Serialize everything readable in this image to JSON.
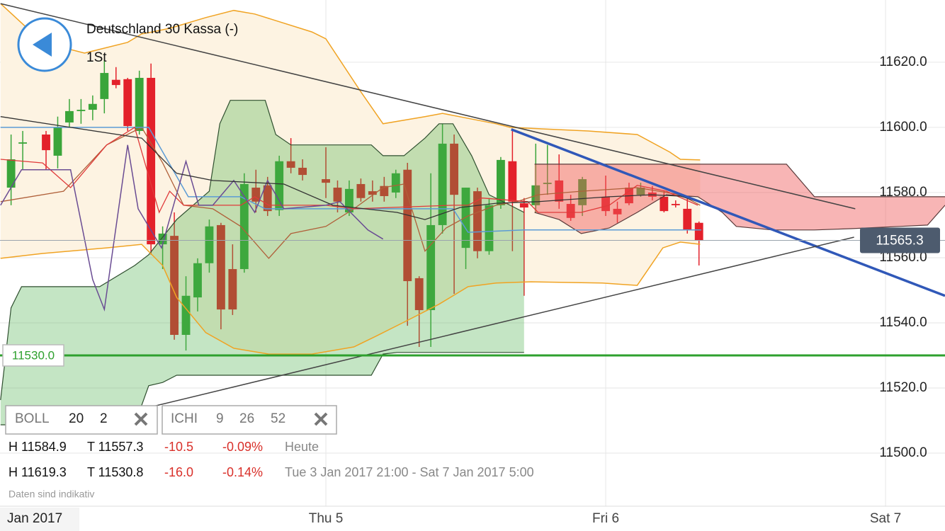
{
  "header": {
    "title": "Deutschland 30 Kassa (-)",
    "interval": "1St"
  },
  "indicators": [
    {
      "name": "BOLL",
      "params": [
        20,
        2
      ]
    },
    {
      "name": "ICHI",
      "params": [
        9,
        26,
        52
      ]
    }
  ],
  "stats": {
    "rows": [
      [
        "H 11584.9",
        "T 11557.3",
        "-10.5",
        "-0.09%",
        "Heute"
      ],
      [
        "H 11619.3",
        "T 11530.8",
        "-16.0",
        "-0.14%",
        "Tue 3 Jan 2017 21:00 - Sat 7 Jan 2017 5:00"
      ]
    ]
  },
  "disclaimer": "Daten sind indikativ",
  "chart_data": {
    "type": "candlestick",
    "x_period_label": "Jan 2017",
    "x": [
      -27,
      -26,
      -24,
      -23,
      -22,
      -21,
      -20,
      -19,
      -18,
      -17,
      -16,
      -15,
      -14,
      -13,
      -12,
      -11,
      -10,
      -9,
      -8,
      -7,
      -6,
      -5,
      -4,
      -3,
      -2,
      0,
      1,
      2,
      3,
      4,
      5,
      6,
      7,
      8,
      9,
      10,
      11,
      12,
      13,
      14,
      15,
      16,
      17,
      18,
      19,
      20,
      21,
      22,
      24,
      25,
      26,
      27,
      28,
      29,
      30,
      31,
      32
    ],
    "open": [
      11581.5,
      11595.0,
      11597.8,
      11591.3,
      11601.5,
      11605.0,
      11605.4,
      11608.7,
      11614.6,
      11614.8,
      11598.9,
      11615.2,
      11564.1,
      11566.7,
      11536.3,
      11547.8,
      11558.3,
      11570.0,
      11556.5,
      11556.5,
      11581.5,
      11582.2,
      11574.6,
      11589.6,
      11587.6,
      11584.1,
      11581.5,
      11573.9,
      11582.6,
      11580.4,
      11582.0,
      11580.0,
      11587.0,
      11553.7,
      11543.9,
      11570.0,
      11595.0,
      11563.0,
      11580.4,
      11562.0,
      11576.1,
      11589.6,
      11576.7,
      11576.1,
      11582.6,
      11583.7,
      11576.5,
      11576.1,
      11578.7,
      11575.0,
      11581.5,
      11579.3,
      11580.0,
      11578.7,
      11576.5,
      11575.0,
      11570.7
    ],
    "high": [
      11597.8,
      11598.9,
      11598.9,
      11603.3,
      11608.7,
      11608.7,
      11609.8,
      11620.7,
      11618.5,
      11615.2,
      11617.4,
      11619.6,
      11569.6,
      11573.9,
      11554.3,
      11559.8,
      11571.7,
      11570.7,
      11564.1,
      11585.9,
      11587.0,
      11584.8,
      11591.3,
      11596.7,
      11590.2,
      11593.9,
      11583.7,
      11583.7,
      11584.3,
      11583.7,
      11584.8,
      11587.0,
      11589.1,
      11554.3,
      11585.9,
      11601.1,
      11597.8,
      11581.5,
      11581.5,
      11578.3,
      11590.9,
      11599.4,
      11578.3,
      11595.0,
      11594.6,
      11591.7,
      11579.3,
      11584.8,
      11585.2,
      11577.2,
      11583.0,
      11583.0,
      11582.0,
      11580.4,
      11577.6,
      11578.3,
      11571.1
    ],
    "low": [
      11576.1,
      11587.0,
      11587.0,
      11587.4,
      11600.0,
      11601.1,
      11602.2,
      11604.3,
      11612.0,
      11598.9,
      11597.8,
      11560.9,
      11556.5,
      11534.8,
      11531.5,
      11543.5,
      11555.4,
      11538.0,
      11542.4,
      11555.4,
      11573.9,
      11572.8,
      11572.8,
      11585.9,
      11583.7,
      11578.3,
      11573.9,
      11572.8,
      11577.2,
      11577.2,
      11577.2,
      11578.3,
      11539.1,
      11532.6,
      11532.6,
      11567.4,
      11548.9,
      11556.5,
      11559.8,
      11560.9,
      11575.0,
      11562.0,
      11548.3,
      11573.9,
      11579.3,
      11575.0,
      11571.3,
      11572.8,
      11572.8,
      11570.7,
      11576.1,
      11578.7,
      11577.6,
      11573.9,
      11575.4,
      11567.4,
      11557.6
    ],
    "close": [
      11590.2,
      11595.4,
      11593.0,
      11600.0,
      11605.0,
      11605.4,
      11607.2,
      11616.7,
      11613.0,
      11600.4,
      11615.2,
      11564.1,
      11567.4,
      11536.3,
      11548.3,
      11558.3,
      11569.6,
      11544.1,
      11544.1,
      11582.6,
      11577.2,
      11574.3,
      11589.6,
      11587.6,
      11585.4,
      11583.0,
      11577.2,
      11581.1,
      11578.3,
      11579.3,
      11578.9,
      11585.9,
      11552.8,
      11543.9,
      11570.0,
      11595.0,
      11579.3,
      11581.5,
      11562.0,
      11576.1,
      11590.0,
      11577.2,
      11575.4,
      11582.2,
      11583.0,
      11577.2,
      11572.2,
      11584.1,
      11574.3,
      11573.3,
      11576.7,
      11581.5,
      11578.7,
      11574.3,
      11576.1,
      11568.5,
      11565.3
    ],
    "up_color": "#3aa53a",
    "down_color": "#e3212b",
    "xlim": [
      -27.95,
      53.1
    ],
    "xticks": [
      {
        "value": 0,
        "label": "Thu 5"
      },
      {
        "value": 24,
        "label": "Fri 6"
      },
      {
        "value": 48,
        "label": "Sat 7"
      }
    ],
    "ylim": [
      11483.7,
      11639.1
    ],
    "yticks": [
      {
        "value": 11500,
        "label": "11500.0"
      },
      {
        "value": 11520,
        "label": "11520.0"
      },
      {
        "value": 11540,
        "label": "11540.0"
      },
      {
        "value": 11560,
        "label": "11560.0"
      },
      {
        "value": 11580,
        "label": "11580.0"
      },
      {
        "value": 11600,
        "label": "11600.0"
      },
      {
        "value": 11620,
        "label": "11620.0"
      }
    ],
    "grid": true,
    "band": {
      "color": "#fdf3e2",
      "upper": {
        "x": [
          -27.9,
          -24.3,
          -20.7,
          -17.0,
          -15.8,
          -14.9,
          -13.4,
          -10.3,
          -7.9,
          -6.1,
          -1.2,
          0,
          3.0,
          4.9,
          8.5,
          10.0,
          14.6,
          15.8,
          22.5,
          26.7,
          29.5,
          30.4,
          32.1
        ],
        "values": [
          11638.0,
          11626.1,
          11622.8,
          11626.1,
          11628.7,
          11629.3,
          11630.4,
          11633.7,
          11635.9,
          11634.8,
          11629.3,
          11627.2,
          11610.9,
          11601.1,
          11603.3,
          11604.3,
          11601.1,
          11600.0,
          11598.9,
          11597.8,
          11592.4,
          11590.2,
          11590.0
        ]
      },
      "lower": {
        "x": [
          -27.9,
          -24.3,
          -18.8,
          -15.8,
          -14.0,
          -12.8,
          -10.3,
          -7.9,
          -4.9,
          -1.2,
          2.4,
          4.3,
          6.7,
          9.7,
          12.2,
          14.6,
          17.6,
          23.7,
          26.7,
          28.9,
          30.4,
          32.1
        ],
        "values": [
          11559.8,
          11561.3,
          11563.0,
          11564.1,
          11557.6,
          11547.8,
          11537.0,
          11532.2,
          11530.4,
          11530.4,
          11532.6,
          11535.9,
          11540.2,
          11545.7,
          11551.1,
          11552.2,
          11552.6,
          11552.2,
          11551.5,
          11563.0,
          11564.8,
          11564.1
        ]
      }
    },
    "clouds": [
      {
        "color": "rgba(70,175,70,0.32)",
        "edge": "#2f4f2f",
        "x": [
          -27.9,
          -27.0,
          -26.1,
          -19.4,
          -16.4,
          -15.2,
          -12.8,
          -10.0,
          -9.1,
          -8.2,
          -5.2,
          -4.3,
          -3.0,
          3.9,
          4.9,
          6.7,
          8.5,
          9.7,
          10.9,
          12.5,
          14.0,
          15.8,
          17.0
        ],
        "upper": [
          11516.3,
          11544.6,
          11551.1,
          11551.1,
          11557.6,
          11560.9,
          11571.7,
          11580.4,
          11601.1,
          11608.3,
          11608.3,
          11597.8,
          11594.6,
          11594.6,
          11591.3,
          11591.3,
          11596.7,
          11601.1,
          11601.1,
          11591.3,
          11579.3,
          11576.1,
          11573.9
        ],
        "x_lower": [
          -27.9,
          -16.4,
          -15.2,
          -14.0,
          -12.8,
          -1.2,
          3.9,
          4.9,
          6.1,
          17.0
        ],
        "lower": [
          11508.7,
          11508.7,
          11520.7,
          11521.7,
          11523.9,
          11523.9,
          11523.9,
          11530.4,
          11530.9,
          11530.9
        ]
      },
      {
        "color": "rgba(240,90,90,0.45)",
        "edge": "#5a3a3a",
        "x": [
          17.9,
          39.5,
          41.9,
          53.1
        ],
        "upper": [
          11588.7,
          11588.7,
          11578.7,
          11578.7
        ],
        "x_lower": [
          17.9,
          20.0,
          21.9,
          24.3,
          26.7,
          29.2,
          31.9,
          34.0,
          35.2,
          38.3,
          41.9,
          45.0,
          49.2,
          51.6,
          53.1
        ],
        "lower": [
          11573.9,
          11571.7,
          11567.4,
          11569.1,
          11573.9,
          11579.3,
          11578.7,
          11573.9,
          11569.6,
          11568.5,
          11568.5,
          11568.9,
          11569.6,
          11570.0,
          11576.1
        ]
      }
    ],
    "lines": [
      {
        "color": "#f0a323",
        "width": 1.5,
        "x": [
          -27.9,
          -24.3,
          -20.7,
          -17.0,
          -15.8,
          -14.9,
          -13.4,
          -10.3,
          -7.9,
          -6.1,
          -1.2,
          0,
          3.0,
          4.9,
          8.5,
          10.0,
          14.6,
          15.8,
          22.5,
          26.7,
          29.5,
          30.4,
          32.1
        ],
        "values": [
          11638.0,
          11626.1,
          11622.8,
          11626.1,
          11628.7,
          11629.3,
          11630.4,
          11633.7,
          11635.9,
          11634.8,
          11629.3,
          11627.2,
          11610.9,
          11601.1,
          11603.3,
          11604.3,
          11601.1,
          11600.0,
          11598.9,
          11597.8,
          11592.4,
          11590.2,
          11590.0
        ]
      },
      {
        "color": "#f0a323",
        "width": 1.5,
        "x": [
          -27.9,
          -24.3,
          -18.8,
          -15.8,
          -14.0,
          -12.8,
          -10.3,
          -7.9,
          -4.9,
          -1.2,
          2.4,
          4.3,
          6.7,
          9.7,
          12.2,
          14.6,
          17.6,
          23.7,
          26.7,
          28.9,
          30.4,
          32.1
        ],
        "values": [
          11559.8,
          11561.3,
          11563.0,
          11564.1,
          11557.6,
          11547.8,
          11537.0,
          11532.2,
          11530.4,
          11530.4,
          11532.6,
          11535.9,
          11540.2,
          11545.7,
          11551.1,
          11552.2,
          11552.6,
          11552.2,
          11551.5,
          11563.0,
          11564.8,
          11564.1
        ]
      },
      {
        "color": "#b0603a",
        "width": 1.3,
        "x": [
          -27.9,
          -22.5,
          -18.8,
          -15.8,
          -14.0,
          -12.2,
          -9.7,
          -7.3,
          -4.9,
          -3.0,
          0,
          2.4,
          4.9,
          6.7,
          8.5,
          10.3,
          12.2,
          14.6,
          16.4,
          18.2,
          21.9,
          26.7,
          30.4,
          32.1
        ],
        "values": [
          11577.2,
          11580.4,
          11594.6,
          11600.0,
          11589.1,
          11576.1,
          11575.0,
          11569.6,
          11559.8,
          11567.4,
          11569.6,
          11575.0,
          11581.5,
          11582.6,
          11562.0,
          11569.1,
          11572.8,
          11576.1,
          11577.2,
          11579.3,
          11580.4,
          11581.5,
          11579.3,
          11576.1
        ]
      },
      {
        "color": "#5b9bd5",
        "width": 1.5,
        "x": [
          -27.9,
          -15.2,
          -11.8,
          -7.3,
          -5.2,
          10.9,
          12.2,
          17.0,
          32.2
        ],
        "values": [
          11600.0,
          11600.0,
          11578.7,
          11578.7,
          11575.0,
          11575.0,
          11567.8,
          11568.5,
          11568.5
        ]
      },
      {
        "color": "#e03a3a",
        "width": 1.3,
        "x": [
          -27.9,
          -24.3,
          -21.9,
          -18.8,
          -16.4,
          -14.3,
          -13.4,
          -12.2,
          -7.3,
          -6.1,
          -4.9,
          0,
          2.4,
          10.9,
          12.2,
          13.4,
          17.3,
          18.2,
          21.9,
          24.3,
          26.7,
          29.2,
          31.9
        ],
        "values": [
          11590.2,
          11589.1,
          11581.5,
          11594.6,
          11600.0,
          11573.9,
          11580.4,
          11576.1,
          11576.1,
          11578.7,
          11576.1,
          11576.1,
          11575.0,
          11576.1,
          11576.1,
          11578.3,
          11577.2,
          11573.9,
          11573.9,
          11576.1,
          11582.2,
          11580.4,
          11576.1
        ]
      },
      {
        "color": "#6a4c93",
        "width": 1.5,
        "x": [
          -27.9,
          -26.1,
          -21.9,
          -20.0,
          -19.0,
          -17.0,
          -16.1,
          -14.1,
          -12.0,
          -10.9,
          -9.7,
          -7.9,
          -6.1,
          -5.0,
          -3.6,
          0,
          1.2,
          3.6,
          4.9
        ],
        "values": [
          11576.1,
          11587.0,
          11587.0,
          11553.3,
          11544.1,
          11594.6,
          11575.0,
          11563.0,
          11589.6,
          11576.1,
          11576.1,
          11583.7,
          11573.9,
          11583.7,
          11575.0,
          11576.1,
          11577.2,
          11568.5,
          11565.7
        ]
      },
      {
        "color": "#333333",
        "width": 1.3,
        "x": [
          -27.9,
          -21.9,
          -15.8,
          -12.8,
          -9.7,
          -3.6,
          0.6,
          6.1,
          8.5,
          11.5,
          14.6,
          18.2,
          24.3,
          27.9,
          30.4,
          31.9
        ],
        "values": [
          11603.3,
          11600.0,
          11596.7,
          11585.9,
          11583.7,
          11582.6,
          11576.1,
          11573.9,
          11571.7,
          11575.4,
          11576.7,
          11577.2,
          11578.7,
          11579.3,
          11578.9,
          11577.2
        ]
      }
    ],
    "trendlines": [
      {
        "color": "#444444",
        "width": 1.5,
        "x": [
          -27.9,
          45.4
        ],
        "values": [
          11638.0,
          11575.0
        ]
      },
      {
        "color": "#3058b8",
        "width": 3.5,
        "x": [
          15.9,
          53.1
        ],
        "values": [
          11599.4,
          11548.3
        ]
      },
      {
        "color": "#444444",
        "width": 1.5,
        "x": [
          -15.8,
          45.3
        ],
        "values": [
          11513.5,
          11566.3
        ]
      }
    ],
    "levels": [
      {
        "value": 11530,
        "label": "11530.0",
        "color": "#2ea02e"
      }
    ],
    "last_price": {
      "value": 11565.3,
      "label": "11565.3",
      "color": "#4d5b6e"
    }
  }
}
